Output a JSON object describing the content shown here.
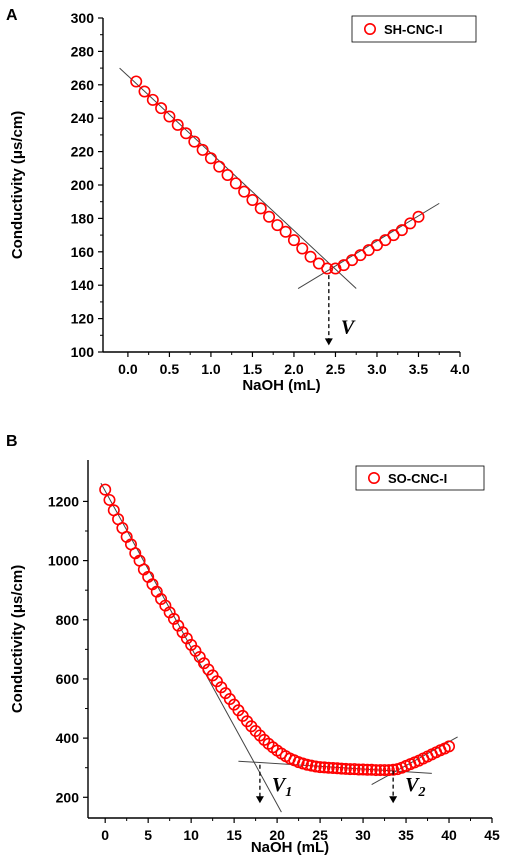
{
  "chart_data": [
    {
      "type": "scatter",
      "panel_label": "A",
      "xlabel": "NaOH (mL)",
      "ylabel": "Conductivity (μs/cm)",
      "xlim": [
        -0.3,
        4.0
      ],
      "ylim": [
        100,
        300
      ],
      "xticks": [
        0.0,
        0.5,
        1.0,
        1.5,
        2.0,
        2.5,
        3.0,
        3.5,
        4.0
      ],
      "xtick_labels": [
        "0.0",
        "0.5",
        "1.0",
        "1.5",
        "2.0",
        "2.5",
        "3.0",
        "3.5",
        "4.0"
      ],
      "yticks": [
        100,
        120,
        140,
        160,
        180,
        200,
        220,
        240,
        260,
        280,
        300
      ],
      "ytick_labels": [
        "100",
        "120",
        "140",
        "160",
        "180",
        "200",
        "220",
        "240",
        "260",
        "280",
        "300"
      ],
      "legend_position": "top-right",
      "series": [
        {
          "name": "SH-CNC-I",
          "color": "#ff0000",
          "marker": "open-circle",
          "x": [
            0.1,
            0.2,
            0.3,
            0.4,
            0.5,
            0.6,
            0.7,
            0.8,
            0.9,
            1.0,
            1.1,
            1.2,
            1.3,
            1.4,
            1.5,
            1.6,
            1.7,
            1.8,
            1.9,
            2.0,
            2.1,
            2.2,
            2.3,
            2.4,
            2.5,
            2.6,
            2.7,
            2.8,
            2.9,
            3.0,
            3.1,
            3.2,
            3.3,
            3.4,
            3.5
          ],
          "y": [
            262,
            256,
            251,
            246,
            241,
            236,
            231,
            226,
            221,
            216,
            211,
            206,
            201,
            196,
            191,
            186,
            181,
            176,
            172,
            167,
            162,
            157,
            153,
            150,
            150,
            152,
            155,
            158,
            161,
            164,
            167,
            170,
            173,
            177,
            181
          ]
        }
      ],
      "fit_lines": [
        {
          "x": [
            -0.1,
            2.75
          ],
          "y": [
            270,
            138
          ]
        },
        {
          "x": [
            2.05,
            3.75
          ],
          "y": [
            138,
            189
          ]
        }
      ],
      "annotations": [
        {
          "label": "V",
          "x": 2.42,
          "y_from": 146,
          "y_to": 104
        }
      ]
    },
    {
      "type": "scatter",
      "panel_label": "B",
      "xlabel": "NaOH (mL)",
      "ylabel": "Conductivity (μs/cm)",
      "xlim": [
        -2,
        45
      ],
      "ylim": [
        130,
        1340
      ],
      "xticks": [
        0,
        5,
        10,
        15,
        20,
        25,
        30,
        35,
        40,
        45
      ],
      "xtick_labels": [
        "0",
        "5",
        "10",
        "15",
        "20",
        "25",
        "30",
        "35",
        "40",
        "45"
      ],
      "yticks": [
        200,
        400,
        600,
        800,
        1000,
        1200
      ],
      "ytick_labels": [
        "200",
        "400",
        "600",
        "800",
        "1000",
        "1200"
      ],
      "legend_position": "top-right",
      "series": [
        {
          "name": "SO-CNC-I",
          "color": "#ff0000",
          "marker": "open-circle",
          "x": [
            0,
            0.5,
            1,
            1.5,
            2,
            2.5,
            3,
            3.5,
            4,
            4.5,
            5,
            5.5,
            6,
            6.5,
            7,
            7.5,
            8,
            8.5,
            9,
            9.5,
            10,
            10.5,
            11,
            11.5,
            12,
            12.5,
            13,
            13.5,
            14,
            14.5,
            15,
            15.5,
            16,
            16.5,
            17,
            17.5,
            18,
            18.5,
            19,
            19.5,
            20,
            20.5,
            21,
            21.5,
            22,
            22.5,
            23,
            23.5,
            24,
            24.5,
            25,
            25.5,
            26,
            26.5,
            27,
            27.5,
            28,
            28.5,
            29,
            29.5,
            30,
            30.5,
            31,
            31.5,
            32,
            32.5,
            33,
            33.5,
            34,
            34.5,
            35,
            35.5,
            36,
            36.5,
            37,
            37.5,
            38,
            38.5,
            39,
            39.5,
            40
          ],
          "y": [
            1240,
            1205,
            1170,
            1140,
            1110,
            1080,
            1055,
            1025,
            1000,
            970,
            945,
            920,
            895,
            870,
            848,
            825,
            803,
            780,
            758,
            737,
            715,
            695,
            674,
            653,
            632,
            612,
            592,
            572,
            552,
            532,
            513,
            494,
            475,
            457,
            440,
            424,
            409,
            394,
            381,
            369,
            358,
            348,
            339,
            331,
            325,
            319,
            314,
            310,
            307,
            304,
            302,
            301,
            300,
            299,
            298,
            297,
            296,
            295,
            295,
            294,
            294,
            293,
            293,
            292,
            292,
            292,
            292,
            293,
            295,
            300,
            306,
            312,
            318,
            324,
            331,
            338,
            345,
            352,
            359,
            365,
            372
          ]
        }
      ],
      "fit_lines": [
        {
          "x": [
            -0.5,
            20.5
          ],
          "y": [
            1262,
            150
          ]
        },
        {
          "x": [
            15.5,
            38
          ],
          "y": [
            322,
            281
          ]
        },
        {
          "x": [
            31,
            41
          ],
          "y": [
            243,
            404
          ]
        }
      ],
      "annotations": [
        {
          "label": "V1",
          "x": 18,
          "y_from": 310,
          "y_to": 180
        },
        {
          "label": "V2",
          "x": 33.5,
          "y_from": 290,
          "y_to": 180
        }
      ]
    }
  ]
}
